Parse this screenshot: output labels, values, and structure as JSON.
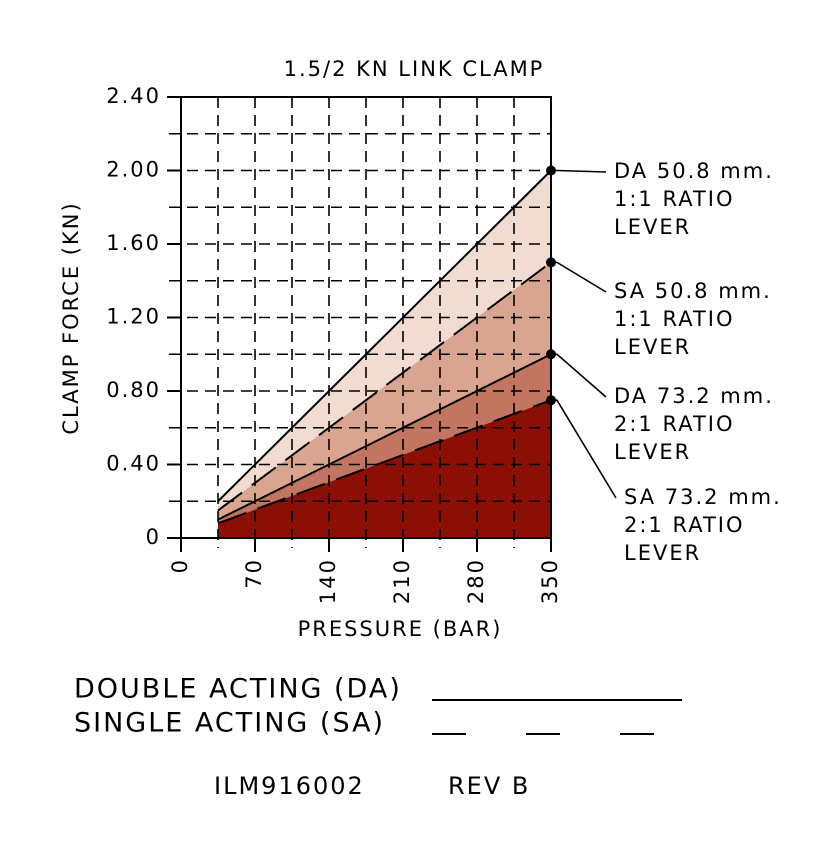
{
  "chart_data": {
    "type": "area",
    "title": "1.5/2 KN LINK CLAMP",
    "x_label": "PRESSURE (BAR)",
    "y_label": "CLAMP FORCE (KN)",
    "xlim": [
      0,
      350
    ],
    "xticks": [
      0,
      70,
      140,
      210,
      280,
      350
    ],
    "xminorticks": [
      35,
      105,
      175,
      245,
      315
    ],
    "ylim": [
      0,
      2.4
    ],
    "yticks": [
      0,
      {
        "value": 0.4,
        "label": "0.40"
      },
      {
        "value": 0.8,
        "label": "0.80"
      },
      {
        "value": 1.2,
        "label": "1.20"
      },
      {
        "value": 1.6,
        "label": "1.60"
      },
      {
        "value": 2,
        "label": "2.00"
      },
      {
        "value": 2.4,
        "label": "2.40"
      }
    ],
    "yminorticks": [
      0.2,
      0.6,
      1,
      1.4,
      1.8,
      2.2
    ],
    "grid": true,
    "series": [
      {
        "name": "DA 50.8 mm.",
        "label_lines": [
          "1:1 RATIO",
          "LEVER"
        ],
        "color": "#f2dcd2",
        "dashed": false,
        "x": [
          35,
          350
        ],
        "values": [
          0.2,
          2
        ]
      },
      {
        "name": "SA 50.8 mm.",
        "label_lines": [
          "1:1 RATIO",
          "LEVER"
        ],
        "color": "#d9a591",
        "dashed": true,
        "x": [
          35,
          350
        ],
        "values": [
          0.15,
          1.5
        ]
      },
      {
        "name": "DA 73.2 mm.",
        "label_lines": [
          "2:1 RATIO",
          "LEVER"
        ],
        "color": "#c27561",
        "dashed": false,
        "x": [
          35,
          350
        ],
        "values": [
          0.1,
          1
        ]
      },
      {
        "name": "SA 73.2 mm.",
        "label_lines": [
          "2:1 RATIO",
          "LEVER"
        ],
        "color": "#8c0f05",
        "dashed": true,
        "x": [
          35,
          350
        ],
        "values": [
          0.08,
          0.75
        ]
      }
    ],
    "line_legend": [
      {
        "label": "DOUBLE ACTING (DA)",
        "dashed": false
      },
      {
        "label": "SINGLE ACTING (SA)",
        "dashed": true
      }
    ],
    "footer": [
      "ILM916002",
      "REV B"
    ]
  }
}
